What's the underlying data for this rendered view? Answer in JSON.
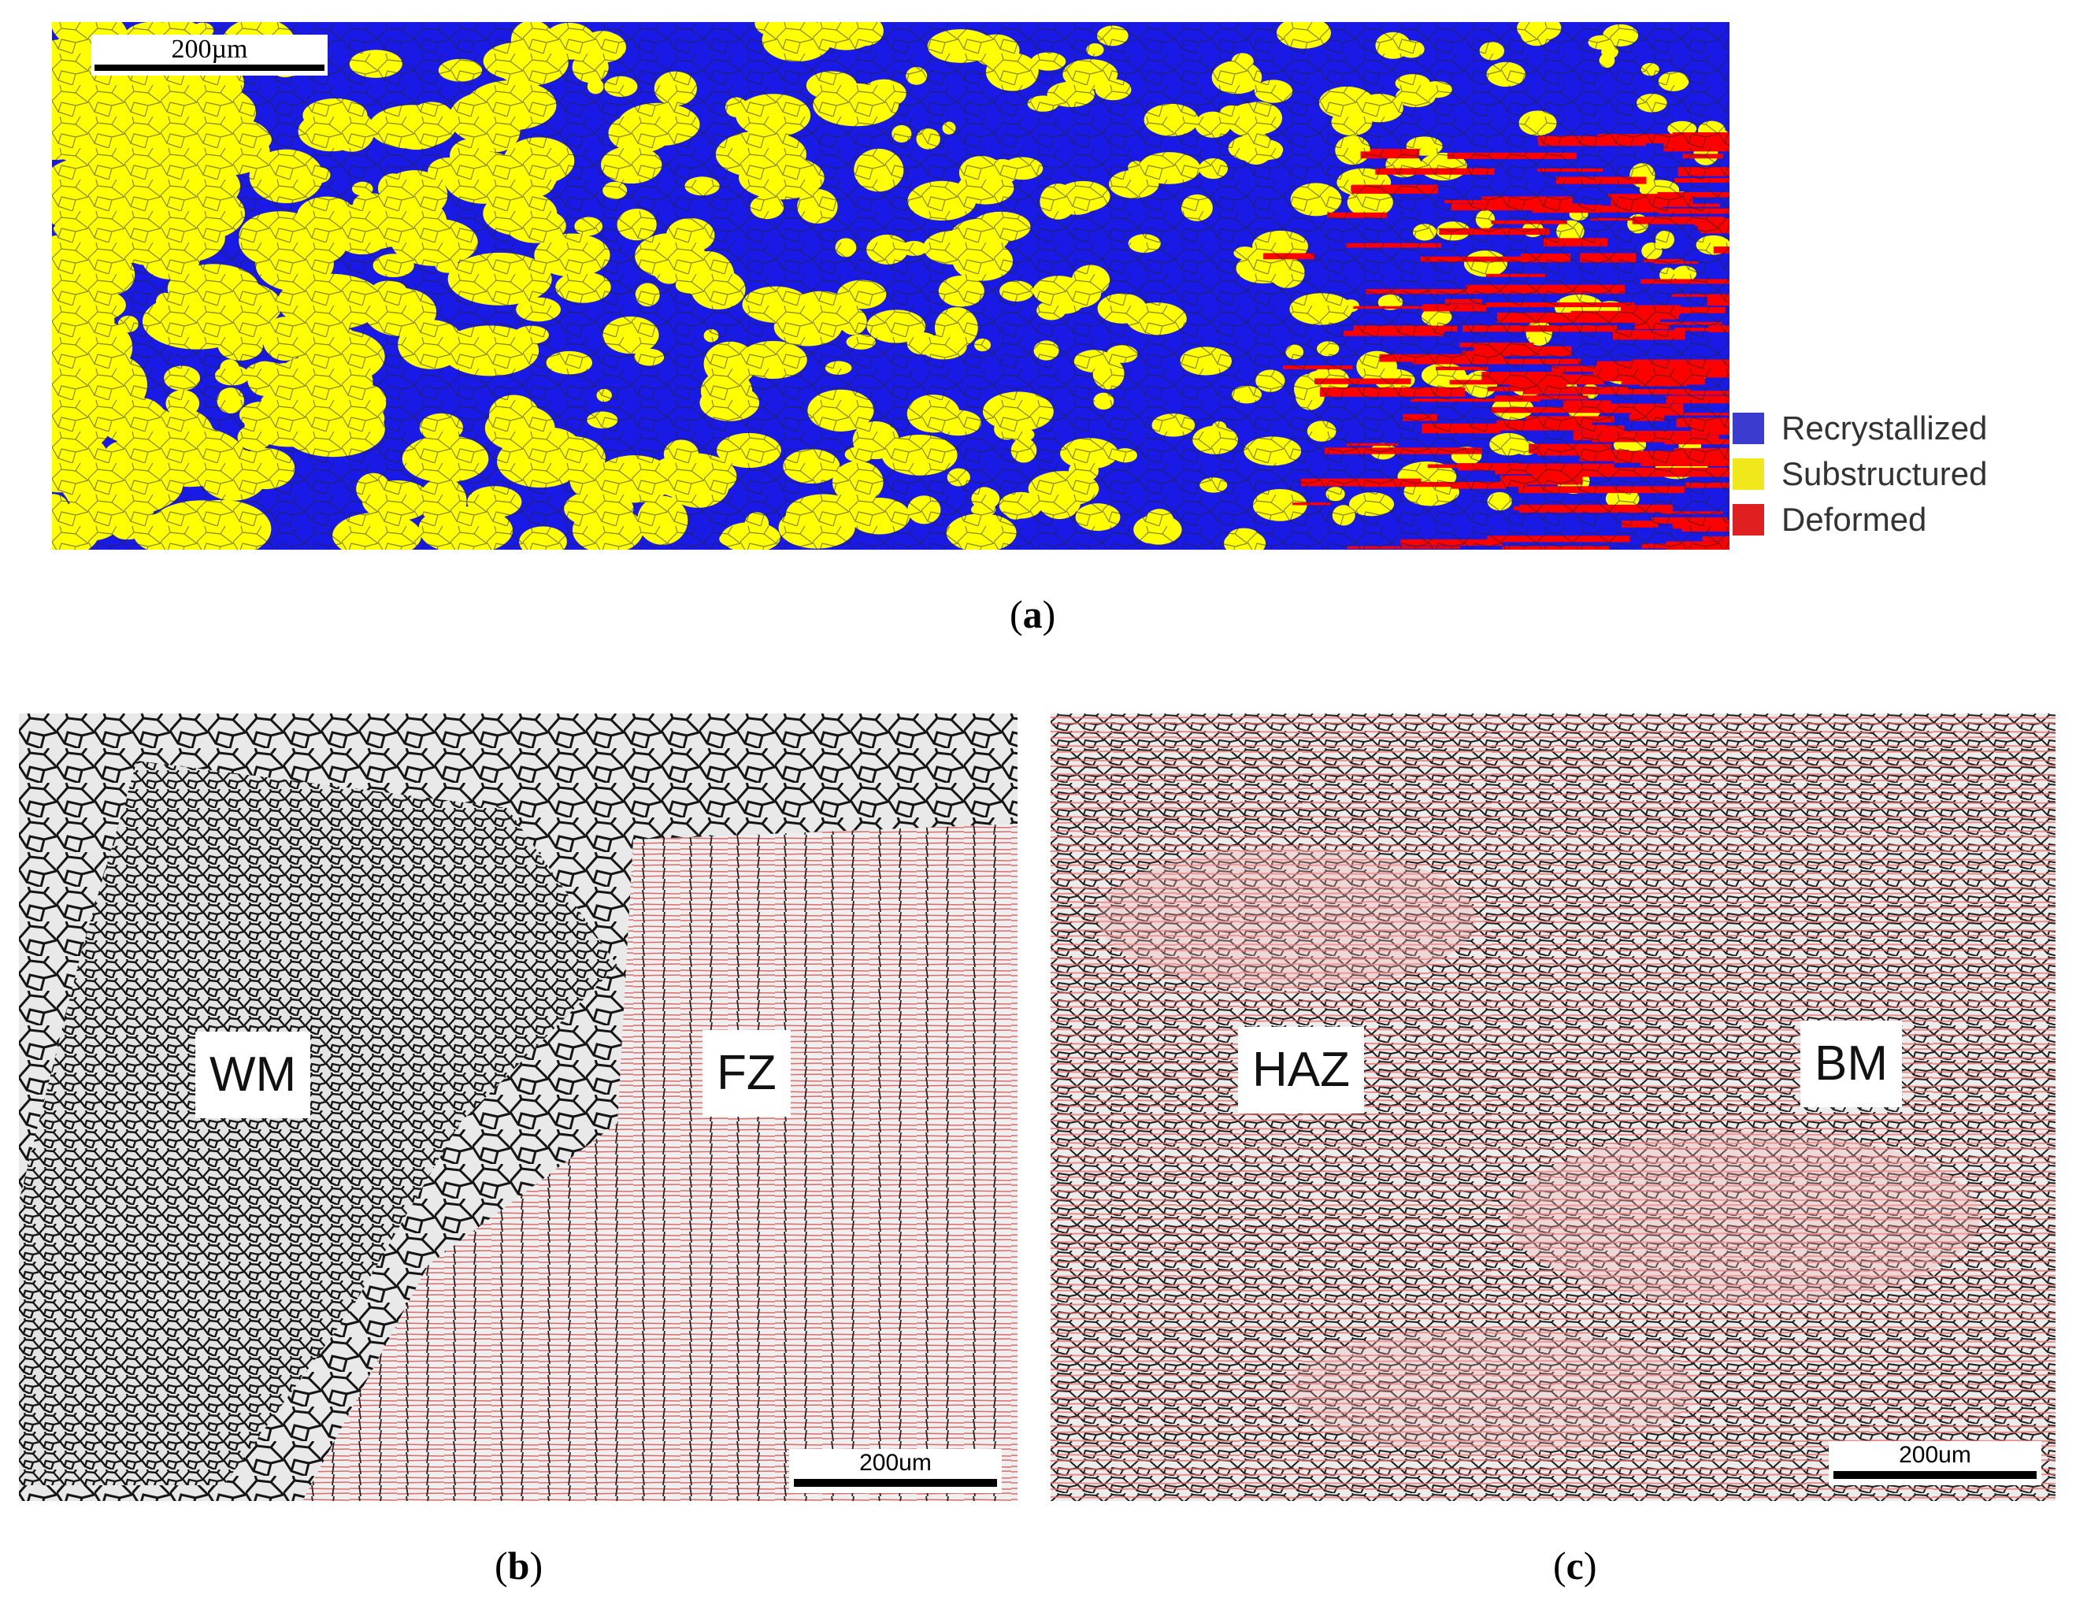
{
  "panels": {
    "a": {
      "scalebar": "200µm",
      "legend": [
        {
          "label": "Recrystallized",
          "color": "#3b3bd0"
        },
        {
          "label": "Substructured",
          "color": "#f0e81a"
        },
        {
          "label": "Deformed",
          "color": "#e02020"
        }
      ],
      "map_colors": {
        "recrystallized": "#1a1ae6",
        "substructured": "#ffff00",
        "deformed": "#ff0000"
      }
    },
    "b": {
      "scalebar": "200um",
      "zones": [
        "WM",
        "FZ"
      ]
    },
    "c": {
      "scalebar": "200um",
      "zones": [
        "HAZ",
        "BM"
      ]
    }
  },
  "captions": {
    "a": {
      "open": "(",
      "letter": "a",
      "close": ")"
    },
    "b": {
      "open": "(",
      "letter": "b",
      "close": ")"
    },
    "c": {
      "open": "(",
      "letter": "c",
      "close": ")"
    }
  }
}
